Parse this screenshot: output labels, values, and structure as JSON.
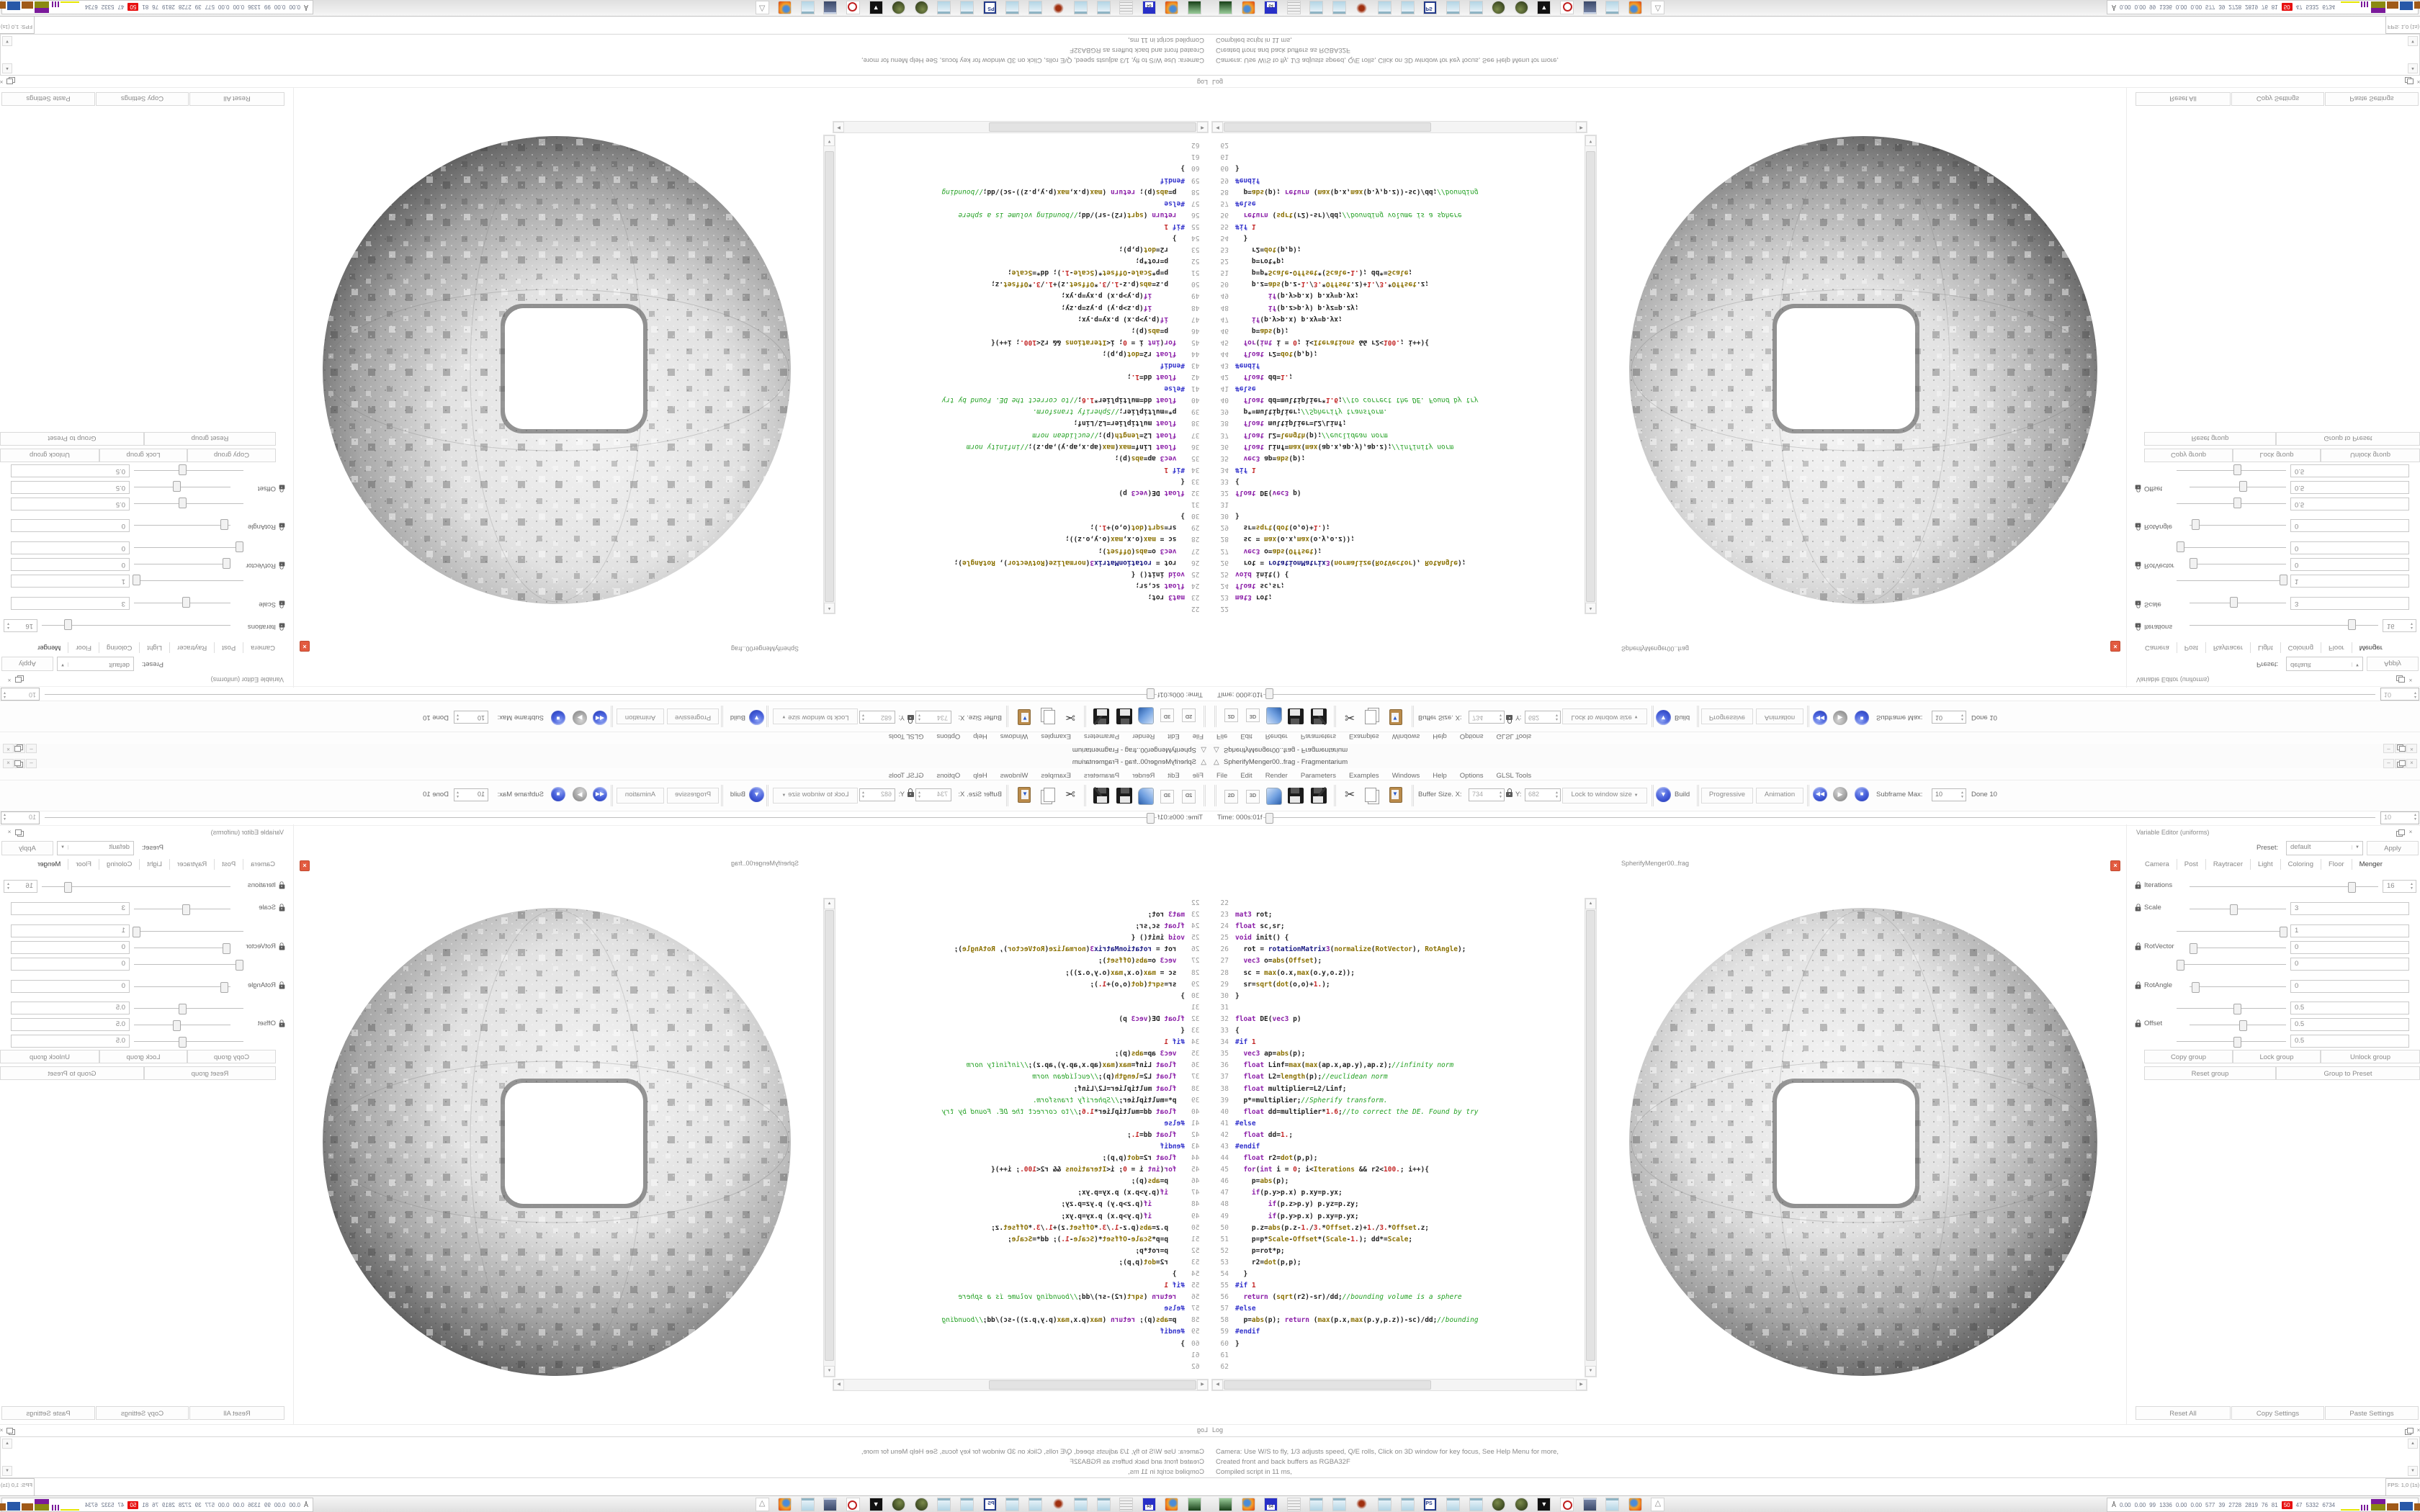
{
  "app": {
    "title": "SpherifyMenger00..frag - Fragmentarium",
    "logo_glyph": "△",
    "window_buttons": {
      "minimize": "–",
      "restore": "",
      "close": "×"
    }
  },
  "menu": [
    "File",
    "Edit",
    "Render",
    "Parameters",
    "Examples",
    "Windows",
    "Help",
    "Options",
    "GLSL Tools"
  ],
  "toolbar": {
    "btn_2d": "2D",
    "btn_3d": "3D",
    "buffer_label": "Buffer Size. X:",
    "buffer_x": "734",
    "y_label": "Y:",
    "buffer_y": "682",
    "lock_dropdown": "Lock to window size",
    "build_label": "Build",
    "progressive_label": "Progressive",
    "animation_label": "Animation",
    "subframe_label": "Subframe Max:",
    "subframe_value": "10",
    "done_label": "Done 10"
  },
  "timebar": {
    "label": "Time: 000s:01f",
    "right_value": "10"
  },
  "viewer": {
    "label": "SpherifyMenger00..frag"
  },
  "editor": {
    "first_line": 22,
    "lines": [
      [],
      [
        [
          "k",
          "mat3"
        ],
        [
          "",
          " rot;"
        ]
      ],
      [
        [
          "k",
          "float"
        ],
        [
          "",
          " sc,sr;"
        ]
      ],
      [
        [
          "k",
          "void"
        ],
        [
          "",
          " init() {"
        ]
      ],
      [
        [
          "",
          "  rot = "
        ],
        [
          "rm",
          "rotationMatrix"
        ],
        [
          "k",
          "3"
        ],
        [
          "",
          "("
        ],
        [
          "f",
          "normalize"
        ],
        [
          "",
          "("
        ],
        [
          "u",
          "RotVector"
        ],
        [
          "",
          "), "
        ],
        [
          "u",
          "RotAngle"
        ],
        [
          "",
          ");"
        ]
      ],
      [
        [
          "",
          "  "
        ],
        [
          "k",
          "vec3"
        ],
        [
          "",
          " o="
        ],
        [
          "f",
          "abs"
        ],
        [
          "",
          "("
        ],
        [
          "u",
          "Offset"
        ],
        [
          "",
          ");"
        ]
      ],
      [
        [
          "",
          "  sc = "
        ],
        [
          "f",
          "max"
        ],
        [
          "",
          "(o.x,"
        ],
        [
          "f",
          "max"
        ],
        [
          "",
          "(o.y,o.z));"
        ]
      ],
      [
        [
          "",
          "  sr="
        ],
        [
          "f",
          "sqrt"
        ],
        [
          "",
          "("
        ],
        [
          "f",
          "dot"
        ],
        [
          "",
          "(o,o)+"
        ],
        [
          "n",
          "1."
        ],
        [
          "",
          ");"
        ]
      ],
      [
        [
          "",
          "}"
        ]
      ],
      [],
      [
        [
          "k",
          "float"
        ],
        [
          "",
          " DE("
        ],
        [
          "k",
          "vec3"
        ],
        [
          "",
          " p)"
        ]
      ],
      [
        [
          "",
          "{"
        ]
      ],
      [
        [
          "p",
          "#if"
        ],
        [
          "",
          " "
        ],
        [
          "n",
          "1"
        ]
      ],
      [
        [
          "",
          "  "
        ],
        [
          "k",
          "vec3"
        ],
        [
          "",
          " ap="
        ],
        [
          "f",
          "abs"
        ],
        [
          "",
          "(p);"
        ]
      ],
      [
        [
          "",
          "  "
        ],
        [
          "k",
          "float"
        ],
        [
          "",
          " Linf="
        ],
        [
          "f",
          "max"
        ],
        [
          "",
          "("
        ],
        [
          "f",
          "max"
        ],
        [
          "",
          "(ap.x,ap.y),ap.z);"
        ],
        [
          "c",
          "//infinity norm"
        ]
      ],
      [
        [
          "",
          "  "
        ],
        [
          "k",
          "float"
        ],
        [
          "",
          " L2="
        ],
        [
          "f",
          "length"
        ],
        [
          "",
          "(p);"
        ],
        [
          "c",
          "//euclidean norm"
        ]
      ],
      [
        [
          "",
          "  "
        ],
        [
          "k",
          "float"
        ],
        [
          "",
          " multiplier=L2/Linf;"
        ]
      ],
      [
        [
          "",
          "  p*=multiplier;"
        ],
        [
          "c",
          "//Spherify transform."
        ]
      ],
      [
        [
          "",
          "  "
        ],
        [
          "k",
          "float"
        ],
        [
          "",
          " dd=multiplier*"
        ],
        [
          "n",
          "1.6"
        ],
        [
          "",
          ";"
        ],
        [
          "c",
          "//to correct the DE. Found by try"
        ]
      ],
      [
        [
          "p",
          "#else"
        ]
      ],
      [
        [
          "",
          "  "
        ],
        [
          "k",
          "float"
        ],
        [
          "",
          " dd="
        ],
        [
          "n",
          "1."
        ],
        [
          "",
          ";"
        ]
      ],
      [
        [
          "p",
          "#endif"
        ]
      ],
      [
        [
          "",
          "  "
        ],
        [
          "k",
          "float"
        ],
        [
          "",
          " r2="
        ],
        [
          "f",
          "dot"
        ],
        [
          "",
          "(p,p);"
        ]
      ],
      [
        [
          "",
          "  "
        ],
        [
          "k",
          "for"
        ],
        [
          "",
          "("
        ],
        [
          "k",
          "int"
        ],
        [
          "",
          " i = "
        ],
        [
          "n",
          "0"
        ],
        [
          "",
          "; i<"
        ],
        [
          "u",
          "Iterations"
        ],
        [
          "",
          " && r2<"
        ],
        [
          "n",
          "100."
        ],
        [
          "",
          "; i++){"
        ]
      ],
      [
        [
          "",
          "    p="
        ],
        [
          "f",
          "abs"
        ],
        [
          "",
          "(p);"
        ]
      ],
      [
        [
          "",
          "    "
        ],
        [
          "k",
          "if"
        ],
        [
          "",
          "(p.y>p.x) p.xy=p.yx;"
        ]
      ],
      [
        [
          "",
          "        "
        ],
        [
          "k",
          "if"
        ],
        [
          "",
          "(p.z>p.y) p.yz=p.zy;"
        ]
      ],
      [
        [
          "",
          "        "
        ],
        [
          "k",
          "if"
        ],
        [
          "",
          "(p.y>p.x) p.xy=p.yx;"
        ]
      ],
      [
        [
          "",
          "    p.z="
        ],
        [
          "f",
          "abs"
        ],
        [
          "",
          "(p.z-"
        ],
        [
          "n",
          "1."
        ],
        [
          "",
          "/"
        ],
        [
          "n",
          "3."
        ],
        [
          "",
          "*"
        ],
        [
          "u",
          "Offset"
        ],
        [
          "",
          ".z)+"
        ],
        [
          "n",
          "1."
        ],
        [
          "",
          "/"
        ],
        [
          "n",
          "3."
        ],
        [
          "",
          "*"
        ],
        [
          "u",
          "Offset"
        ],
        [
          "",
          ".z;"
        ]
      ],
      [
        [
          "",
          "    p=p*"
        ],
        [
          "u",
          "Scale"
        ],
        [
          "",
          "-"
        ],
        [
          "u",
          "Offset"
        ],
        [
          "",
          "*("
        ],
        [
          "u",
          "Scale"
        ],
        [
          "",
          "-"
        ],
        [
          "n",
          "1."
        ],
        [
          "",
          "); dd*="
        ],
        [
          "u",
          "Scale"
        ],
        [
          "",
          ";"
        ]
      ],
      [
        [
          "",
          "    p=rot*p;"
        ]
      ],
      [
        [
          "",
          "    r2="
        ],
        [
          "f",
          "dot"
        ],
        [
          "",
          "(p,p);"
        ]
      ],
      [
        [
          "",
          "  }"
        ]
      ],
      [
        [
          "p",
          "#if"
        ],
        [
          "",
          " "
        ],
        [
          "n",
          "1"
        ]
      ],
      [
        [
          "",
          "  "
        ],
        [
          "k",
          "return"
        ],
        [
          "",
          " ("
        ],
        [
          "f",
          "sqrt"
        ],
        [
          "",
          "(r2)-sr)/dd;"
        ],
        [
          "c",
          "//bounding volume is a sphere"
        ]
      ],
      [
        [
          "p",
          "#else"
        ]
      ],
      [
        [
          "",
          "  p="
        ],
        [
          "f",
          "abs"
        ],
        [
          "",
          "(p); "
        ],
        [
          "k",
          "return"
        ],
        [
          "",
          " ("
        ],
        [
          "f",
          "max"
        ],
        [
          "",
          "(p.x,"
        ],
        [
          "f",
          "max"
        ],
        [
          "",
          "(p.y,p.z))-sc)/dd;"
        ],
        [
          "c",
          "//bounding"
        ]
      ],
      [
        [
          "p",
          "#endif"
        ]
      ],
      [
        [
          "",
          "}"
        ]
      ],
      [],
      []
    ]
  },
  "variable_editor": {
    "title": "Variable Editor (uniforms)",
    "preset_label": "Preset:",
    "preset_value": "default",
    "apply_label": "Apply",
    "tabs": [
      "Camera",
      "Post",
      "Raytracer",
      "Light",
      "Coloring",
      "Floor",
      "Menger"
    ],
    "active_tab": "Menger",
    "rows": [
      {
        "label": "Iterations",
        "lock": true,
        "value": "16",
        "widget": "spin",
        "handle": 0.87
      },
      {
        "label": "Scale",
        "lock": true,
        "value": "3",
        "widget": "wide",
        "handle": 0.45
      },
      {
        "label": "",
        "lock": false,
        "value": "1",
        "widget": "wide",
        "handle": 1.0
      },
      {
        "label": "RotVector",
        "lock": true,
        "value": "0",
        "widget": "wide",
        "handle": 0.0
      },
      {
        "label": "",
        "lock": false,
        "value": "0",
        "widget": "wide",
        "handle": 0.0
      },
      {
        "label": "RotAngle",
        "lock": true,
        "value": "0",
        "widget": "wide",
        "handle": 0.02
      },
      {
        "label": "",
        "lock": false,
        "value": "0.5",
        "widget": "wide",
        "handle": 0.55
      },
      {
        "label": "Offset",
        "lock": true,
        "value": "0.5",
        "widget": "wide",
        "handle": 0.55
      },
      {
        "label": "",
        "lock": false,
        "value": "0.5",
        "widget": "wide",
        "handle": 0.55
      }
    ],
    "group_buttons_row1": [
      "Copy group",
      "Lock group",
      "Unlock group"
    ],
    "group_buttons_row2": [
      "Reset group",
      "Group to Preset"
    ],
    "bottom_buttons": [
      "Reset All",
      "Copy Settings",
      "Paste Settings"
    ]
  },
  "log": {
    "title": "Log",
    "lines": [
      "Camera: Use W/S to fly, 1/3 adjusts speed, Q/E rolls, Click on 3D window for key focus, See Help Menu for more,",
      "Created front and back buffers as RGBA32F",
      "Compiled script in 11 ms,"
    ],
    "fps": "FPS: 1,0 (1s)"
  },
  "taskbar": {
    "icons": [
      "terminal",
      "firefox",
      "floppy-64",
      "script",
      "notepad",
      "notepad",
      "ink-splat",
      "notepad",
      "notepad",
      "ps-document",
      "notepad",
      "notepad",
      "moss-ball",
      "moss-ball",
      "black-arrow",
      "red-ring",
      "monitor",
      "notepad",
      "firefox",
      "fragmentarium-logo"
    ],
    "floppy_label": "64",
    "ps_label": "PS",
    "tray": {
      "numbers": [
        "0.00",
        "0.00",
        "99",
        "1336",
        "0.00",
        "0.00",
        "577",
        "39",
        "2728",
        "2819",
        "76",
        "81",
        "50",
        "47",
        "5332",
        "6734"
      ],
      "alert_index": 12,
      "graphs": [
        "yellow-line",
        "purple-spikes",
        "purple-olive",
        "brown-block",
        "blue-block",
        "brown-block",
        "green-line",
        "red-spikes"
      ]
    }
  },
  "colors": {
    "accent_blue": "#2a3fc0",
    "build_blue": "#1a2fae",
    "alert_red": "#e81010",
    "tab_x_red": "#e25b40",
    "comment_green": "#22a022",
    "keyword_purple": "#8b1fa8",
    "number_red": "#c42828"
  }
}
